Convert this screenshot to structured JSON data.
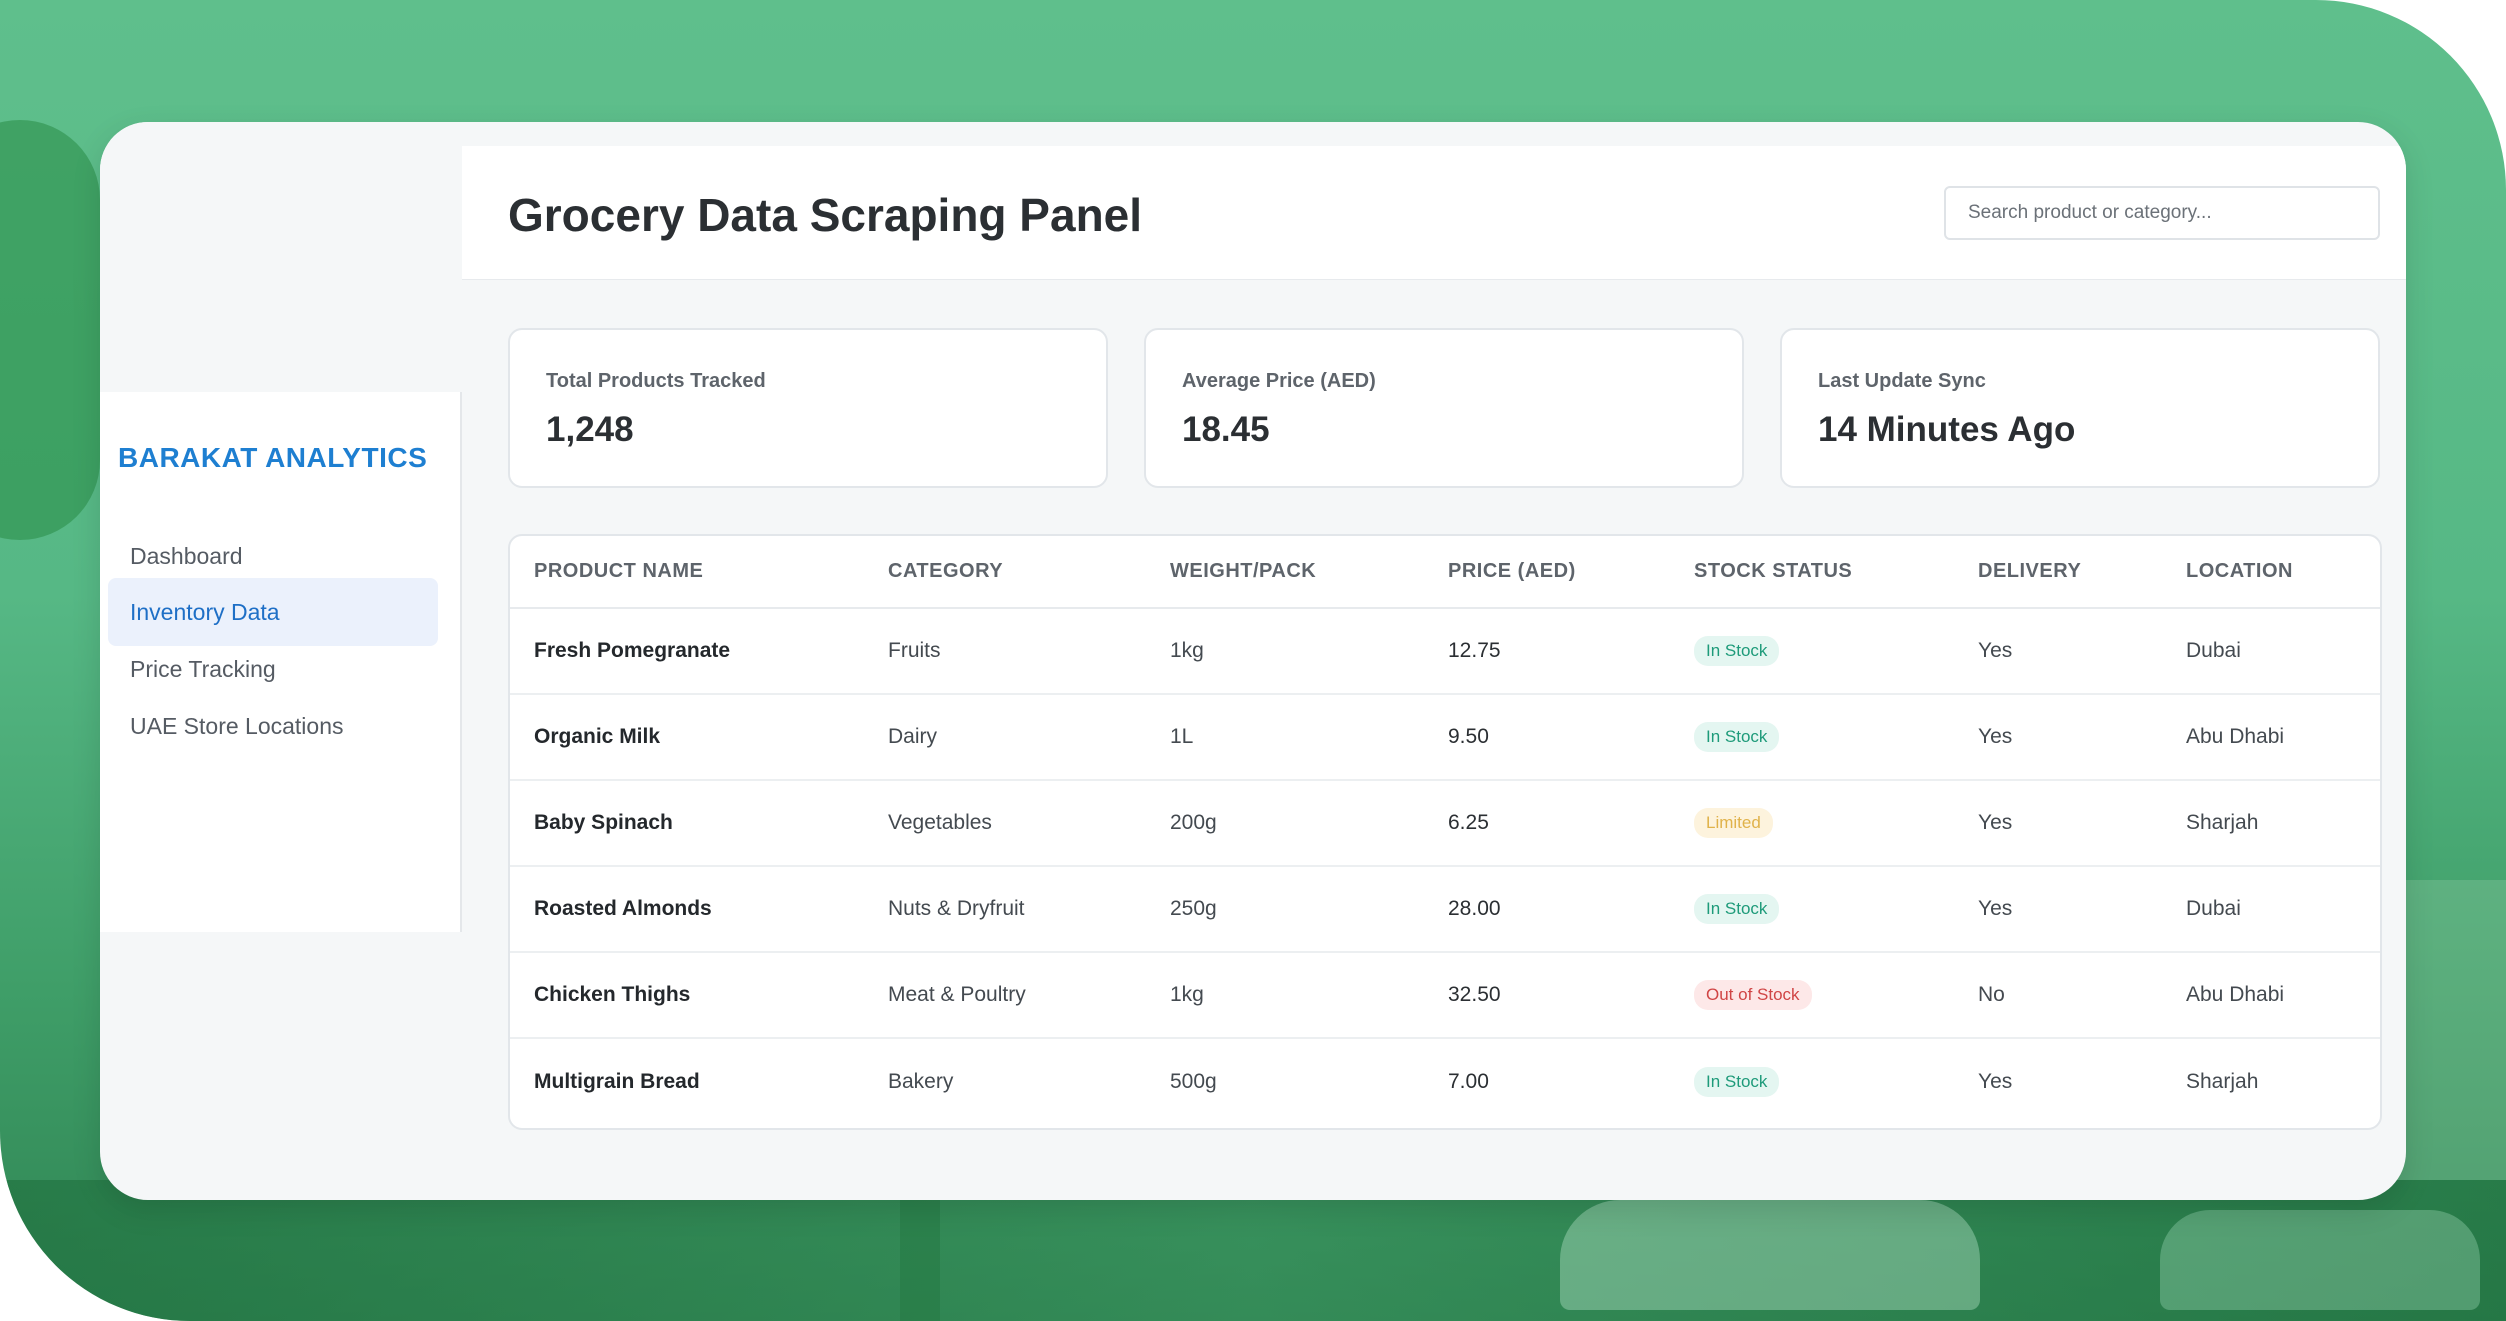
{
  "app": {
    "brand": "BARAKAT ANALYTICS",
    "title": "Grocery Data Scraping Panel"
  },
  "search": {
    "placeholder": "Search product or category..."
  },
  "sidebar": {
    "items": [
      {
        "label": "Dashboard"
      },
      {
        "label": "Inventory Data",
        "active": true
      },
      {
        "label": "Price Tracking"
      },
      {
        "label": "UAE Store Locations"
      }
    ]
  },
  "stats": [
    {
      "label": "Total Products Tracked",
      "value": "1,248"
    },
    {
      "label": "Average Price (AED)",
      "value": "18.45"
    },
    {
      "label": "Last Update Sync",
      "value": "14 Minutes Ago"
    }
  ],
  "table": {
    "headers": [
      "PRODUCT NAME",
      "CATEGORY",
      "WEIGHT/PACK",
      "PRICE (AED)",
      "STOCK STATUS",
      "DELIVERY",
      "LOCATION"
    ],
    "rows": [
      {
        "name": "Fresh Pomegranate",
        "category": "Fruits",
        "weight": "1kg",
        "price": "12.75",
        "status": "In Stock",
        "delivery": "Yes",
        "location": "Dubai"
      },
      {
        "name": "Organic Milk",
        "category": "Dairy",
        "weight": "1L",
        "price": "9.50",
        "status": "In Stock",
        "delivery": "Yes",
        "location": "Abu Dhabi"
      },
      {
        "name": "Baby Spinach",
        "category": "Vegetables",
        "weight": "200g",
        "price": "6.25",
        "status": "Limited",
        "delivery": "Yes",
        "location": "Sharjah"
      },
      {
        "name": "Roasted Almonds",
        "category": "Nuts & Dryfruit",
        "weight": "250g",
        "price": "28.00",
        "status": "In Stock",
        "delivery": "Yes",
        "location": "Dubai"
      },
      {
        "name": "Chicken Thighs",
        "category": "Meat & Poultry",
        "weight": "1kg",
        "price": "32.50",
        "status": "Out of Stock",
        "delivery": "No",
        "location": "Abu Dhabi"
      },
      {
        "name": "Multigrain Bread",
        "category": "Bakery",
        "weight": "500g",
        "price": "7.00",
        "status": "In Stock",
        "delivery": "Yes",
        "location": "Sharjah"
      }
    ]
  },
  "colors": {
    "brand": "#1e7fd1",
    "in_stock": "#1e9b7a",
    "limited": "#e0b24a",
    "out_of_stock": "#d04545",
    "background_green": "#5fbf8c"
  }
}
